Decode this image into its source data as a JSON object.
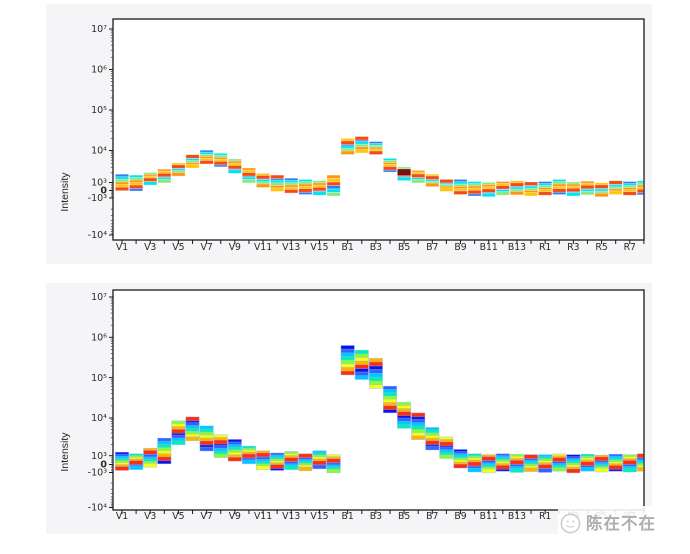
{
  "page": {
    "background": "#ffffff",
    "panel_background": "#f5f5f7",
    "plot_background": "#ffffff",
    "axis_color": "#1a1a1a",
    "label_color": "#2a2a2a"
  },
  "watermark": {
    "text": "陈在不在",
    "icon": "doodle-circle-logo",
    "color": "#aeaeae"
  },
  "chart_data": [
    {
      "type": "scatter",
      "title": "",
      "ylabel": "Intensity",
      "xlabel": "",
      "y_scale": "biexponential",
      "grid": false,
      "legend": "none",
      "y_tick_labels": [
        "10⁷",
        "10⁶",
        "10⁵",
        "10⁴",
        "10³",
        "0",
        "-10³",
        "-10⁴"
      ],
      "y_tick_values": [
        10000000,
        1000000,
        100000,
        10000,
        1000,
        0,
        -1000,
        -10000
      ],
      "categories": [
        "V1",
        "V2",
        "V3",
        "V4",
        "V5",
        "V6",
        "V7",
        "V8",
        "V9",
        "V10",
        "V11",
        "V12",
        "V13",
        "V14",
        "V15",
        "V16",
        "B1",
        "B2",
        "B3",
        "B4",
        "B5",
        "B6",
        "B7",
        "B8",
        "B9",
        "B10",
        "B11",
        "B12",
        "B13",
        "B14",
        "R1",
        "R2",
        "R3",
        "R4",
        "R5",
        "R6",
        "R7",
        "R8"
      ],
      "x_tick_labels_shown": [
        "V1",
        "V3",
        "V5",
        "V7",
        "V9",
        "V11",
        "V13",
        "V15",
        "B1",
        "B3",
        "B5",
        "B7",
        "B9",
        "B11",
        "B13",
        "R1",
        "R3",
        "R5",
        "R7"
      ],
      "series_colors": [
        "#2f7df5",
        "#00e4f2",
        "#8ae87e",
        "#ff9612",
        "#ffc60a",
        "#f24b16"
      ],
      "cluster_ranges": [
        [
          200,
          1600
        ],
        [
          150,
          1500
        ],
        [
          900,
          1800
        ],
        [
          1100,
          2300
        ],
        [
          1800,
          3600
        ],
        [
          3200,
          6500
        ],
        [
          4300,
          9000
        ],
        [
          3500,
          7200
        ],
        [
          2200,
          4800
        ],
        [
          1100,
          2500
        ],
        [
          600,
          1700
        ],
        [
          100,
          1500
        ],
        [
          -100,
          1200
        ],
        [
          -300,
          1100
        ],
        [
          -400,
          1000
        ],
        [
          -500,
          1500
        ],
        [
          8500,
          18000
        ],
        [
          9500,
          20000
        ],
        [
          8500,
          15000
        ],
        [
          2400,
          5000
        ],
        [
          1300,
          2700
        ],
        [
          1100,
          2100
        ],
        [
          700,
          1600
        ],
        [
          100,
          1100
        ],
        [
          -300,
          1100
        ],
        [
          -500,
          900
        ],
        [
          -600,
          800
        ],
        [
          -400,
          900
        ],
        [
          -350,
          1000
        ],
        [
          -500,
          850
        ],
        [
          -400,
          900
        ],
        [
          -300,
          1100
        ],
        [
          -500,
          850
        ],
        [
          -350,
          950
        ],
        [
          -600,
          750
        ],
        [
          -300,
          1000
        ],
        [
          -400,
          900
        ],
        [
          -350,
          1000
        ]
      ],
      "highlight_segment": {
        "category": "B5",
        "value": 2100,
        "color": "#7a1012"
      }
    },
    {
      "type": "scatter",
      "title": "",
      "ylabel": "Intensity",
      "xlabel": "",
      "y_scale": "biexponential",
      "grid": false,
      "legend": "none",
      "y_tick_labels": [
        "10⁷",
        "10⁶",
        "10⁵",
        "10⁴",
        "10³",
        "0",
        "-10³",
        "-10⁴"
      ],
      "y_tick_values": [
        10000000,
        1000000,
        100000,
        10000,
        1000,
        0,
        -1000,
        -10000
      ],
      "categories": [
        "V1",
        "V2",
        "V3",
        "V4",
        "V5",
        "V6",
        "V7",
        "V8",
        "V9",
        "V10",
        "V11",
        "V12",
        "V13",
        "V14",
        "V15",
        "V16",
        "B1",
        "B2",
        "B3",
        "B4",
        "B5",
        "B6",
        "B7",
        "B8",
        "B9",
        "B10",
        "B11",
        "B12",
        "B13",
        "B14",
        "R1",
        "R2",
        "R3",
        "R4",
        "R5",
        "R6",
        "R7",
        "R8"
      ],
      "x_tick_labels_shown": [
        "V1",
        "V3",
        "V5",
        "V7",
        "V9",
        "V11",
        "V13",
        "V15",
        "B1",
        "B3",
        "B5",
        "B7",
        "B9",
        "B11",
        "B13",
        "R1",
        "R3",
        "R5",
        "R7"
      ],
      "series_colors": [
        "#0a14e6",
        "#2f62ff",
        "#00c8ff",
        "#00efb4",
        "#86fa3c",
        "#f2ff16",
        "#ffb400",
        "#ff2d10"
      ],
      "cluster_ranges": [
        [
          -500,
          1100
        ],
        [
          -400,
          1000
        ],
        [
          -100,
          1400
        ],
        [
          300,
          2600
        ],
        [
          2200,
          7500
        ],
        [
          2800,
          9500
        ],
        [
          1500,
          5500
        ],
        [
          1000,
          3200
        ],
        [
          600,
          2400
        ],
        [
          300,
          1600
        ],
        [
          -400,
          1200
        ],
        [
          -500,
          1050
        ],
        [
          -400,
          1150
        ],
        [
          -550,
          1000
        ],
        [
          -300,
          1200
        ],
        [
          -800,
          900
        ],
        [
          130000,
          560000
        ],
        [
          100000,
          430000
        ],
        [
          60000,
          270000
        ],
        [
          15000,
          55000
        ],
        [
          6000,
          22000
        ],
        [
          3000,
          12000
        ],
        [
          1600,
          5000
        ],
        [
          900,
          2800
        ],
        [
          -200,
          1300
        ],
        [
          -700,
          1000
        ],
        [
          -800,
          900
        ],
        [
          -600,
          1000
        ],
        [
          -750,
          950
        ],
        [
          -650,
          900
        ],
        [
          -750,
          900
        ],
        [
          -600,
          1000
        ],
        [
          -800,
          900
        ],
        [
          -600,
          950
        ],
        [
          -700,
          850
        ],
        [
          -600,
          950
        ],
        [
          -700,
          900
        ],
        [
          -600,
          1000
        ]
      ],
      "highlight_segment": null
    }
  ]
}
